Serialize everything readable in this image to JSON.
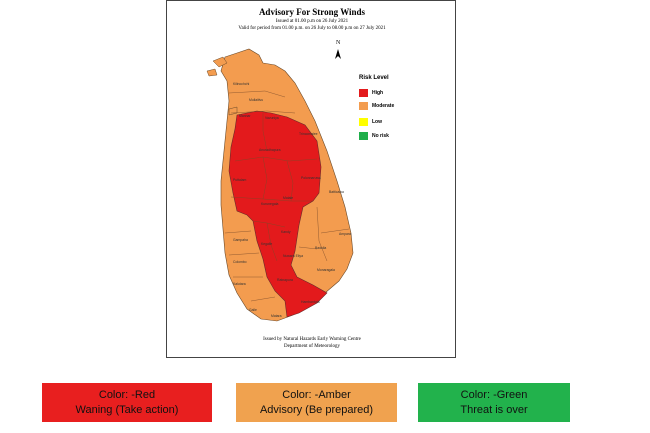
{
  "map": {
    "title": "Advisory For Strong Winds",
    "issued": "Issued at 01.00 p.m on 26 July 2021",
    "valid": "Valid for period from 01.00 p.m. on 26 July to 08.00 p.m on 27 July 2021",
    "north_label": "N",
    "footer_line1": "Issued by Natural Hazards Early Warning Centre",
    "footer_line2": "Department of Meteorology",
    "legend": {
      "title": "Risk Level",
      "items": [
        {
          "label": "High",
          "color": "#e31a1c"
        },
        {
          "label": "Moderate",
          "color": "#f39c4f"
        },
        {
          "label": "Low",
          "color": "#ffff00"
        },
        {
          "label": "No risk",
          "color": "#1fae4a"
        }
      ]
    },
    "districts": {
      "high": [
        "Anuradhapura",
        "Trincomalee",
        "Puttalam",
        "Polonnaruwa",
        "Kurunegala",
        "Matale",
        "Kegalle",
        "Kandy",
        "Nuwara Eliya",
        "Ratnapura",
        "Hambantota"
      ],
      "moderate": [
        "Jaffna",
        "Kilinochchi",
        "Mullaitivu",
        "Mannar",
        "Vavuniya",
        "Batticaloa",
        "Ampara",
        "Badulla",
        "Monaragala",
        "Gampaha",
        "Colombo",
        "Kalutara",
        "Galle",
        "Matara"
      ]
    }
  },
  "cards": [
    {
      "line1": "Color: -Red",
      "line2": "Waning (Take action)",
      "color": "#e81f1f"
    },
    {
      "line1": "Color: -Amber",
      "line2": "Advisory (Be prepared)",
      "color": "#f0a24f"
    },
    {
      "line1": "Color: -Green",
      "line2": "Threat is over",
      "color": "#22b24c"
    }
  ]
}
